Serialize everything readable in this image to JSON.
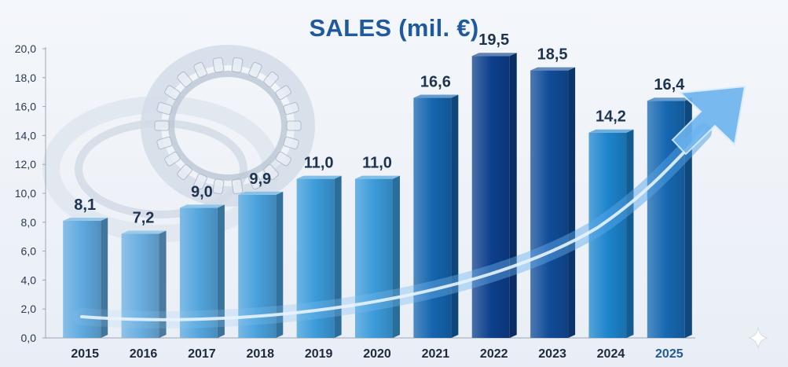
{
  "chart_data": {
    "type": "bar",
    "title": "SALES (mil. €)",
    "categories": [
      "2015",
      "2016",
      "2017",
      "2018",
      "2019",
      "2020",
      "2021",
      "2022",
      "2023",
      "2024",
      "2025"
    ],
    "values": [
      8.1,
      7.2,
      9.0,
      9.9,
      11.0,
      11.0,
      16.6,
      19.5,
      18.5,
      14.2,
      16.4
    ],
    "value_labels": [
      "8,1",
      "7,2",
      "9,0",
      "9,9",
      "11,0",
      "11,0",
      "16,6",
      "19,5",
      "18,5",
      "14,2",
      "16,4"
    ],
    "yticks": [
      "0,0",
      "2,0",
      "4,0",
      "6,0",
      "8,0",
      "10,0",
      "12,0",
      "14,0",
      "16,0",
      "18,0",
      "20,0"
    ],
    "ylim": [
      0,
      20
    ],
    "grid": false,
    "trend_arrow": true,
    "colors": {
      "title": "#1f5a9e",
      "bar_light": "#6aaee0",
      "bar_mid": "#1f8fd6",
      "bar_dark": "#0d3f8c",
      "label": "#1e3350",
      "arrow": "#5aa8ee"
    }
  }
}
